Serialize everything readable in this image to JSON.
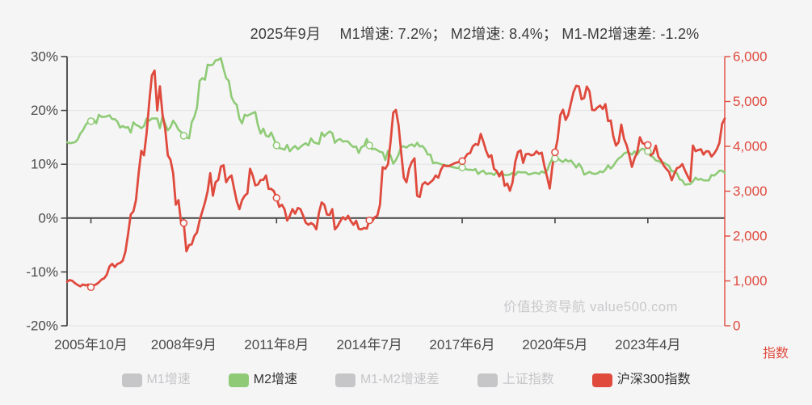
{
  "title": {
    "text": "2025年9月　 M1增速: 7.2%； M2增速: 8.4%； M1-M2增速差: -1.2%"
  },
  "watermark": {
    "text": "价值投资导航 value500.com"
  },
  "colors": {
    "background": "#f5f5f6",
    "grid_line": "#e3e3e5",
    "zero_axis_line": "#454545",
    "axis_text": "#4a4a4a",
    "right_axis": "#df4a3d",
    "m2_green": "#8fcb76",
    "csi_red": "#df4a3d",
    "inactive_gray": "#c6c6c8",
    "marker_fill": "#fafafa"
  },
  "legend": {
    "items": [
      {
        "key": "m1-growth",
        "label": "M1增速",
        "color": "#c6c6c8",
        "active": false
      },
      {
        "key": "m2-growth",
        "label": "M2增速",
        "color": "#8fcb76",
        "active": true
      },
      {
        "key": "m1-m2-spread",
        "label": "M1-M2增速差",
        "color": "#c6c6c8",
        "active": false
      },
      {
        "key": "sse-index",
        "label": "上证指数",
        "color": "#c6c6c8",
        "active": false
      },
      {
        "key": "csi300-index",
        "label": "沪深300指数",
        "color": "#df4a3d",
        "active": true
      }
    ]
  },
  "chart_data": {
    "type": "line",
    "x_start_month": "2005-01",
    "x_end_month": "2025-09",
    "x_tick_labels": [
      "2005年10月",
      "2008年9月",
      "2011年8月",
      "2014年7月",
      "2017年6月",
      "2020年5月",
      "2023年4月"
    ],
    "x_tick_month_indices": [
      9,
      44,
      79,
      114,
      149,
      184,
      219
    ],
    "marker_month_indices": [
      9,
      44,
      79,
      114,
      149,
      184,
      219
    ],
    "left_axis": {
      "min": -20,
      "max": 30,
      "tick_values": [
        30,
        20,
        10,
        0,
        -10,
        -20
      ],
      "tick_labels": [
        "30%",
        "20%",
        "10%",
        "0%",
        "-10%",
        "-20%"
      ]
    },
    "right_axis": {
      "min": 0,
      "max": 6000,
      "tick_values": [
        6000,
        5000,
        4000,
        3000,
        2000,
        1000,
        0
      ],
      "tick_labels": [
        "6,000",
        "5,000",
        "4,000",
        "3,000",
        "2,000",
        "1,000",
        "0"
      ],
      "name": "指数"
    },
    "series": [
      {
        "name": "M2增速",
        "axis": "left",
        "color": "#8fcb76",
        "line_width": 2.6,
        "values": [
          14.1,
          13.9,
          14.0,
          14.1,
          14.6,
          15.7,
          16.3,
          17.3,
          17.9,
          18.0,
          18.3,
          17.6,
          19.2,
          18.8,
          18.8,
          18.9,
          19.1,
          18.4,
          18.4,
          17.9,
          16.8,
          17.1,
          16.8,
          16.9,
          15.9,
          17.8,
          17.3,
          17.1,
          16.7,
          17.1,
          18.5,
          18.1,
          18.5,
          18.5,
          18.5,
          16.7,
          18.9,
          17.5,
          16.3,
          16.9,
          18.1,
          17.4,
          16.4,
          16.0,
          15.3,
          15.0,
          14.8,
          17.8,
          18.8,
          20.5,
          25.5,
          26.0,
          25.7,
          28.5,
          28.4,
          28.5,
          29.3,
          29.4,
          29.7,
          27.7,
          26.0,
          25.5,
          22.5,
          21.5,
          21.0,
          18.5,
          17.6,
          19.2,
          19.0,
          19.3,
          19.5,
          19.7,
          17.2,
          15.7,
          16.6,
          15.3,
          15.1,
          15.9,
          14.7,
          13.5,
          13.0,
          12.9,
          12.7,
          13.6,
          12.4,
          13.0,
          13.4,
          12.8,
          13.2,
          13.6,
          13.9,
          13.5,
          14.8,
          14.1,
          13.9,
          13.8,
          15.9,
          15.2,
          15.7,
          16.1,
          15.8,
          14.0,
          14.5,
          14.7,
          14.2,
          14.3,
          14.2,
          13.6,
          13.2,
          13.3,
          12.1,
          13.2,
          13.4,
          14.7,
          13.5,
          12.8,
          12.9,
          12.6,
          12.3,
          12.2,
          10.8,
          12.5,
          11.6,
          10.1,
          10.8,
          11.8,
          13.3,
          13.3,
          13.1,
          13.5,
          13.7,
          13.3,
          14.0,
          13.3,
          13.4,
          12.8,
          11.8,
          11.8,
          10.2,
          10.3,
          10.2,
          10.0,
          9.9,
          9.8,
          9.7,
          9.5,
          9.4,
          9.3,
          9.3,
          9.4,
          9.2,
          9.0,
          9.0,
          8.9,
          9.1,
          8.2,
          8.6,
          8.8,
          8.2,
          8.3,
          8.3,
          8.0,
          8.5,
          8.2,
          8.3,
          8.0,
          8.0,
          8.1,
          8.4,
          8.0,
          8.6,
          8.5,
          8.5,
          8.5,
          8.1,
          8.2,
          8.4,
          8.4,
          8.2,
          8.7,
          8.4,
          8.8,
          10.1,
          11.1,
          11.1,
          11.1,
          10.7,
          10.4,
          10.9,
          10.5,
          10.7,
          10.1,
          9.4,
          10.1,
          9.4,
          8.1,
          8.3,
          8.6,
          8.3,
          8.2,
          8.3,
          8.7,
          8.5,
          9.0,
          9.8,
          9.2,
          9.7,
          10.5,
          11.1,
          11.4,
          12.0,
          12.2,
          12.1,
          11.8,
          12.4,
          11.8,
          12.6,
          12.9,
          12.7,
          12.4,
          11.6,
          11.3,
          10.7,
          10.6,
          10.3,
          10.3,
          10.0,
          9.7,
          8.7,
          8.7,
          8.3,
          7.2,
          7.0,
          6.2,
          6.3,
          6.3,
          6.8,
          7.5,
          7.1,
          7.3,
          7.0,
          7.0,
          7.0,
          8.0,
          7.9,
          8.3,
          8.8,
          8.8,
          8.4
        ]
      },
      {
        "name": "沪深300指数",
        "axis": "right",
        "color": "#df4a3d",
        "line_width": 2.8,
        "values": [
          982,
          1020,
          1000,
          950,
          910,
          880,
          920,
          900,
          920,
          860,
          900,
          924,
          970,
          1030,
          1060,
          1140,
          1320,
          1380,
          1310,
          1380,
          1400,
          1450,
          1650,
          2042,
          2480,
          2550,
          2800,
          3400,
          3900,
          3800,
          4300,
          5000,
          5580,
          5688,
          4800,
          5338,
          4700,
          4400,
          3800,
          3700,
          3400,
          2700,
          2800,
          2300,
          2290,
          1660,
          1800,
          1817,
          2000,
          2080,
          2350,
          2550,
          2750,
          3000,
          3400,
          2900,
          3200,
          3250,
          3550,
          3576,
          3200,
          3300,
          3350,
          3050,
          2770,
          2600,
          2800,
          2900,
          2950,
          3500,
          3350,
          3129,
          3150,
          3250,
          3250,
          3350,
          3050,
          3050,
          3000,
          2850,
          2650,
          2700,
          2600,
          2346,
          2450,
          2600,
          2500,
          2625,
          2600,
          2460,
          2300,
          2250,
          2290,
          2250,
          2150,
          2523,
          2750,
          2700,
          2480,
          2470,
          2600,
          2150,
          2220,
          2330,
          2420,
          2370,
          2450,
          2331,
          2250,
          2340,
          2160,
          2150,
          2180,
          2165,
          2350,
          2320,
          2420,
          2450,
          2700,
          3534,
          3500,
          3600,
          4100,
          4750,
          4810,
          4470,
          3850,
          3300,
          3200,
          3500,
          3650,
          3731,
          2900,
          2870,
          3150,
          3200,
          3150,
          3200,
          3250,
          3350,
          3300,
          3480,
          3580,
          3560,
          3560,
          3590,
          3620,
          3640,
          3650,
          3670,
          3740,
          3830,
          3850,
          4000,
          4050,
          4030,
          4275,
          4100,
          3900,
          3760,
          3800,
          3500,
          3450,
          3330,
          3440,
          3120,
          3170,
          3010,
          3200,
          3650,
          3870,
          3910,
          3630,
          3825,
          3835,
          3800,
          3815,
          3890,
          3830,
          3860,
          3560,
          3320,
          3060,
          3560,
          3867,
          4163,
          4695,
          4816,
          4587,
          4700,
          4960,
          5211,
          5352,
          5336,
          5048,
          5077,
          5331,
          5224,
          4811,
          4805,
          4866,
          4909,
          4832,
          4940,
          4563,
          4574,
          4222,
          4016,
          4091,
          4485,
          4170,
          4023,
          3805,
          3541,
          3735,
          3871,
          4201,
          4069,
          4050,
          4029,
          3799,
          3842,
          4014,
          3765,
          3690,
          3572,
          3496,
          3431,
          3243,
          3390,
          3516,
          3537,
          3604,
          3462,
          3340,
          3225,
          4018,
          3891,
          3917,
          3935,
          3817,
          3890,
          3887,
          3771,
          3840,
          3936,
          4075,
          4498,
          4620
        ]
      }
    ]
  }
}
